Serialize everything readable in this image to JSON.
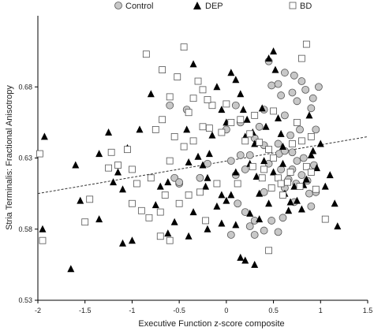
{
  "chart_data": {
    "type": "scatter",
    "xlabel": "Executive Function z-score composite",
    "ylabel": "Stria Terminalis: Fractional Anisotropy",
    "xlim": [
      -2,
      1.5
    ],
    "ylim": [
      0.53,
      0.73
    ],
    "x_ticks": [
      {
        "value": -2,
        "label": "-2"
      },
      {
        "value": -1.5,
        "label": "-1.5"
      },
      {
        "value": -1,
        "label": "-1"
      },
      {
        "value": -0.5,
        "label": "-0.5"
      },
      {
        "value": 0,
        "label": "0"
      },
      {
        "value": 0.5,
        "label": "0.5"
      },
      {
        "value": 1,
        "label": "1"
      },
      {
        "value": 1.5,
        "label": "1.5"
      }
    ],
    "y_ticks": [
      {
        "value": 0.53,
        "label": "0.53"
      },
      {
        "value": 0.58,
        "label": "0.58"
      },
      {
        "value": 0.63,
        "label": "0.63"
      },
      {
        "value": 0.68,
        "label": "0.68"
      }
    ],
    "grid": false,
    "legend_position": "top",
    "trend_line": {
      "style": "dashed",
      "x": [
        -2,
        1.5
      ],
      "y": [
        0.605,
        0.645
      ]
    },
    "series": [
      {
        "name": "Control",
        "marker": "circle",
        "fill": "#c8c8c8",
        "points": [
          [
            0.45,
            0.698
          ],
          [
            0.62,
            0.69
          ],
          [
            0.8,
            0.684
          ],
          [
            0.72,
            0.688
          ],
          [
            0.7,
            0.676
          ],
          [
            0.98,
            0.68
          ],
          [
            0.48,
            0.681
          ],
          [
            0.58,
            0.674
          ],
          [
            0.75,
            0.67
          ],
          [
            0.84,
            0.678
          ],
          [
            0.92,
            0.672
          ],
          [
            0.55,
            0.682
          ],
          [
            0.62,
            0.66
          ],
          [
            0.4,
            0.664
          ],
          [
            0.35,
            0.652
          ],
          [
            0.9,
            0.665
          ],
          [
            0.1,
            0.667
          ],
          [
            0.15,
            0.655
          ],
          [
            0.3,
            0.644
          ],
          [
            0.68,
            0.646
          ],
          [
            0.78,
            0.65
          ],
          [
            0.95,
            0.65
          ],
          [
            0.55,
            0.64
          ],
          [
            0.45,
            0.626
          ],
          [
            0.56,
            0.633
          ],
          [
            0.62,
            0.635
          ],
          [
            0.7,
            0.634
          ],
          [
            0.75,
            0.628
          ],
          [
            0.82,
            0.63
          ],
          [
            0.93,
            0.625
          ],
          [
            0.4,
            0.639
          ],
          [
            0.58,
            0.622
          ],
          [
            0.66,
            0.615
          ],
          [
            0.7,
            0.622
          ],
          [
            0.74,
            0.612
          ],
          [
            0.8,
            0.618
          ],
          [
            0.86,
            0.614
          ],
          [
            0.88,
            0.605
          ],
          [
            0.62,
            0.609
          ],
          [
            -0.2,
            0.626
          ],
          [
            -0.28,
            0.616
          ],
          [
            -0.6,
            0.667
          ],
          [
            -0.42,
            0.664
          ],
          [
            0.05,
            0.628
          ],
          [
            0.1,
            0.618
          ],
          [
            0.2,
            0.622
          ],
          [
            0.25,
            0.632
          ],
          [
            -0.5,
            0.612
          ],
          [
            -0.55,
            0.616
          ],
          [
            0.4,
            0.606
          ],
          [
            0.12,
            0.598
          ],
          [
            0.2,
            0.592
          ],
          [
            0.25,
            0.582
          ],
          [
            0.05,
            0.576
          ],
          [
            0.3,
            0.586
          ],
          [
            0.4,
            0.579
          ],
          [
            0.55,
            0.578
          ],
          [
            0.48,
            0.586
          ],
          [
            0.6,
            0.588
          ],
          [
            0.3,
            0.576
          ],
          [
            0.72,
            0.599
          ],
          [
            0.9,
            0.596
          ],
          [
            0.95,
            0.606
          ],
          [
            -0.5,
            0.613
          ],
          [
            0.0,
            0.65
          ],
          [
            0.15,
            0.632
          ]
        ]
      },
      {
        "name": "DEP",
        "marker": "triangle",
        "fill": "#000000",
        "points": [
          [
            -1.93,
            0.645
          ],
          [
            -1.6,
            0.625
          ],
          [
            -1.55,
            0.6
          ],
          [
            -1.35,
            0.633
          ],
          [
            -1.35,
            0.587
          ],
          [
            -1.25,
            0.648
          ],
          [
            -1.2,
            0.613
          ],
          [
            -1.15,
            0.62
          ],
          [
            -1.1,
            0.608
          ],
          [
            -1.05,
            0.637
          ],
          [
            -0.92,
            0.65
          ],
          [
            -0.8,
            0.675
          ],
          [
            -0.7,
            0.61
          ],
          [
            -0.62,
            0.613
          ],
          [
            -0.55,
            0.585
          ],
          [
            -0.42,
            0.65
          ],
          [
            -0.4,
            0.627
          ],
          [
            -0.3,
            0.631
          ],
          [
            -0.25,
            0.625
          ],
          [
            -0.22,
            0.61
          ],
          [
            -0.2,
            0.616
          ],
          [
            -0.18,
            0.633
          ],
          [
            -0.15,
            0.646
          ],
          [
            -0.1,
            0.68
          ],
          [
            -0.05,
            0.664
          ],
          [
            0.0,
            0.655
          ],
          [
            0.05,
            0.69
          ],
          [
            0.1,
            0.685
          ],
          [
            0.15,
            0.675
          ],
          [
            0.18,
            0.664
          ],
          [
            0.2,
            0.645
          ],
          [
            0.22,
            0.657
          ],
          [
            0.25,
            0.626
          ],
          [
            0.28,
            0.648
          ],
          [
            0.3,
            0.64
          ],
          [
            0.32,
            0.617
          ],
          [
            0.35,
            0.605
          ],
          [
            0.38,
            0.665
          ],
          [
            0.42,
            0.652
          ],
          [
            0.45,
            0.7
          ],
          [
            0.5,
            0.705
          ],
          [
            0.52,
            0.692
          ],
          [
            0.55,
            0.658
          ],
          [
            0.58,
            0.647
          ],
          [
            0.6,
            0.638
          ],
          [
            0.62,
            0.605
          ],
          [
            0.66,
            0.593
          ],
          [
            0.68,
            0.599
          ],
          [
            0.72,
            0.61
          ],
          [
            0.75,
            0.6
          ],
          [
            0.8,
            0.594
          ],
          [
            0.82,
            0.611
          ],
          [
            0.85,
            0.615
          ],
          [
            0.88,
            0.66
          ],
          [
            0.9,
            0.632
          ],
          [
            0.92,
            0.635
          ],
          [
            0.96,
            0.623
          ],
          [
            1.0,
            0.64
          ],
          [
            1.05,
            0.61
          ],
          [
            1.1,
            0.618
          ],
          [
            1.15,
            0.598
          ],
          [
            1.18,
            0.582
          ],
          [
            -1.95,
            0.58
          ],
          [
            -1.65,
            0.552
          ],
          [
            -1.1,
            0.57
          ],
          [
            -1.0,
            0.572
          ],
          [
            -0.75,
            0.597
          ],
          [
            -0.62,
            0.577
          ],
          [
            -0.4,
            0.575
          ],
          [
            -0.35,
            0.592
          ],
          [
            -0.2,
            0.58
          ],
          [
            -0.1,
            0.596
          ],
          [
            -0.05,
            0.584
          ],
          [
            0.0,
            0.6
          ],
          [
            0.05,
            0.604
          ],
          [
            0.1,
            0.583
          ],
          [
            0.15,
            0.56
          ],
          [
            0.2,
            0.558
          ],
          [
            0.25,
            0.591
          ],
          [
            0.3,
            0.555
          ],
          [
            0.35,
            0.587
          ],
          [
            0.45,
            0.598
          ],
          [
            -0.35,
            0.696
          ],
          [
            -0.05,
            0.604
          ],
          [
            0.1,
            0.62
          ],
          [
            0.4,
            0.628
          ],
          [
            0.5,
            0.62
          ],
          [
            0.6,
            0.626
          ]
        ]
      },
      {
        "name": "BD",
        "marker": "square",
        "fill": "#ffffff",
        "points": [
          [
            -0.85,
            0.703
          ],
          [
            -0.45,
            0.708
          ],
          [
            -0.52,
            0.687
          ],
          [
            -0.68,
            0.692
          ],
          [
            -0.6,
            0.673
          ],
          [
            -0.35,
            0.672
          ],
          [
            -0.25,
            0.678
          ],
          [
            -0.15,
            0.667
          ],
          [
            -0.25,
            0.652
          ],
          [
            -0.35,
            0.642
          ],
          [
            -0.45,
            0.638
          ],
          [
            -0.55,
            0.645
          ],
          [
            -0.68,
            0.657
          ],
          [
            -0.75,
            0.65
          ],
          [
            -0.6,
            0.628
          ],
          [
            -0.8,
            0.616
          ],
          [
            -0.95,
            0.612
          ],
          [
            -1.0,
            0.622
          ],
          [
            -1.15,
            0.625
          ],
          [
            -1.25,
            0.623
          ],
          [
            -1.22,
            0.634
          ],
          [
            -1.05,
            0.636
          ],
          [
            -1.0,
            0.598
          ],
          [
            -0.9,
            0.593
          ],
          [
            -0.82,
            0.588
          ],
          [
            -0.7,
            0.592
          ],
          [
            -0.65,
            0.604
          ],
          [
            -0.4,
            0.604
          ],
          [
            -0.28,
            0.606
          ],
          [
            -0.22,
            0.586
          ],
          [
            -0.5,
            0.598
          ],
          [
            -0.6,
            0.572
          ],
          [
            -0.7,
            0.575
          ],
          [
            -1.5,
            0.585
          ],
          [
            -1.45,
            0.601
          ],
          [
            -1.95,
            0.572
          ],
          [
            -1.98,
            0.633
          ],
          [
            -0.2,
            0.671
          ],
          [
            -0.18,
            0.651
          ],
          [
            -0.05,
            0.648
          ],
          [
            0.0,
            0.668
          ],
          [
            0.05,
            0.655
          ],
          [
            0.15,
            0.657
          ],
          [
            0.2,
            0.642
          ],
          [
            0.25,
            0.647
          ],
          [
            0.3,
            0.66
          ],
          [
            0.35,
            0.641
          ],
          [
            0.4,
            0.622
          ],
          [
            0.45,
            0.636
          ],
          [
            0.5,
            0.63
          ],
          [
            0.55,
            0.616
          ],
          [
            0.6,
            0.604
          ],
          [
            0.65,
            0.613
          ],
          [
            0.7,
            0.64
          ],
          [
            0.75,
            0.655
          ],
          [
            0.8,
            0.642
          ],
          [
            0.85,
            0.624
          ],
          [
            0.9,
            0.62
          ],
          [
            0.95,
            0.608
          ],
          [
            1.05,
            0.587
          ],
          [
            0.8,
            0.7
          ],
          [
            0.5,
            0.663
          ],
          [
            0.45,
            0.565
          ],
          [
            0.85,
            0.71
          ],
          [
            -0.1,
            0.612
          ],
          [
            0.12,
            0.612
          ],
          [
            0.28,
            0.624
          ],
          [
            0.38,
            0.616
          ],
          [
            0.48,
            0.609
          ],
          [
            0.58,
            0.612
          ],
          [
            0.68,
            0.62
          ],
          [
            0.78,
            0.61
          ],
          [
            -0.4,
            0.662
          ],
          [
            -0.3,
            0.684
          ],
          [
            0.9,
            0.645
          ]
        ]
      }
    ]
  }
}
